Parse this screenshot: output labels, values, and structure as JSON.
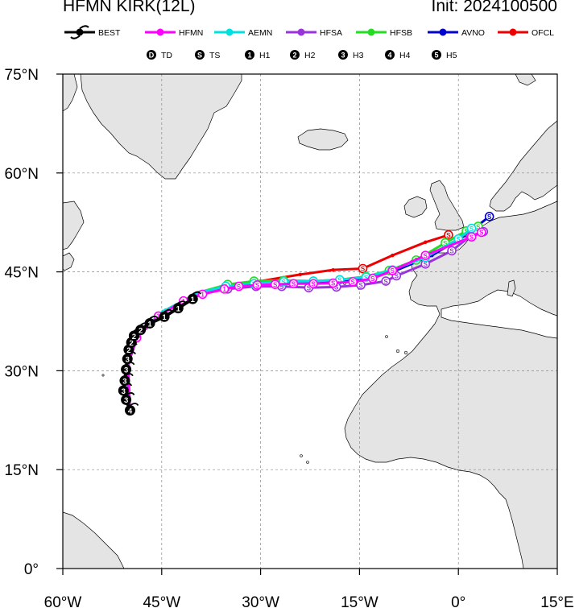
{
  "header": {
    "title": "HFMN KIRK(12L)",
    "init": "Init: 2024100500"
  },
  "legend": {
    "models": [
      {
        "name": "BEST",
        "color": "#000000"
      },
      {
        "name": "HFMN",
        "color": "#ff00ff"
      },
      {
        "name": "AEMN",
        "color": "#00e0e0"
      },
      {
        "name": "HFSA",
        "color": "#9933dd"
      },
      {
        "name": "HFSB",
        "color": "#22dd22"
      },
      {
        "name": "AVNO",
        "color": "#0000cc"
      },
      {
        "name": "OFCL",
        "color": "#ee0000"
      }
    ],
    "intensity": [
      {
        "symbol": "D",
        "label": "TD"
      },
      {
        "symbol": "S",
        "label": "TS"
      },
      {
        "symbol": "1",
        "label": "H1"
      },
      {
        "symbol": "2",
        "label": "H2"
      },
      {
        "symbol": "3",
        "label": "H3"
      },
      {
        "symbol": "4",
        "label": "H4"
      },
      {
        "symbol": "5",
        "label": "H5"
      }
    ]
  },
  "axes": {
    "lon_labels": [
      "60°W",
      "45°W",
      "30°W",
      "15°W",
      "0°",
      "15°E"
    ],
    "lat_labels": [
      "0°",
      "15°N",
      "30°N",
      "45°N",
      "60°N",
      "75°N"
    ],
    "lon_range": [
      -60,
      15
    ],
    "lat_range": [
      0,
      75
    ],
    "grid_lon": [
      -45,
      -30,
      -15,
      0
    ],
    "grid_lat": [
      15,
      30,
      45,
      60
    ]
  },
  "chart_data": {
    "type": "map",
    "tracks": [
      {
        "name": "BEST",
        "points": [
          [
            24,
            -49.8,
            "4"
          ],
          [
            25.6,
            -50.4,
            "3"
          ],
          [
            27,
            -50.8,
            "3"
          ],
          [
            28.5,
            -50.6,
            "3"
          ],
          [
            30.2,
            -50.4,
            "3"
          ],
          [
            31.8,
            -50.2,
            "3"
          ],
          [
            33.2,
            -50.0,
            "2"
          ],
          [
            34.3,
            -49.6,
            "2"
          ],
          [
            35.3,
            -49.2,
            "2"
          ],
          [
            36.2,
            -48.2,
            "2"
          ],
          [
            37.2,
            -46.8,
            "1"
          ],
          [
            38.2,
            -44.6,
            "1"
          ],
          [
            39.5,
            -42.5,
            "1"
          ],
          [
            40.9,
            -40.3,
            "1"
          ]
        ]
      },
      {
        "name": "HFMN",
        "points": [
          [
            24,
            -49.8,
            ""
          ],
          [
            31,
            -50.2,
            ""
          ],
          [
            35,
            -48.8,
            "1"
          ],
          [
            38.3,
            -45.5,
            "1"
          ],
          [
            40.6,
            -41.7,
            "1"
          ],
          [
            41.6,
            -38.8,
            "1"
          ],
          [
            42.4,
            -35.5,
            "1"
          ],
          [
            42.8,
            -33.3,
            "S"
          ],
          [
            43.0,
            -30.5,
            "S"
          ],
          [
            43.1,
            -27.8,
            "S"
          ],
          [
            43.2,
            -25,
            "S"
          ],
          [
            43.2,
            -22,
            "S"
          ],
          [
            43.3,
            -19,
            "S"
          ],
          [
            43.5,
            -16,
            "S"
          ],
          [
            44.0,
            -13,
            "S"
          ],
          [
            45.2,
            -10,
            "S"
          ],
          [
            47.5,
            -5,
            "S"
          ],
          [
            50.3,
            2,
            "S"
          ],
          [
            51.0,
            3.5,
            "S"
          ]
        ]
      },
      {
        "name": "AEMN",
        "points": [
          [
            24,
            -49.9,
            ""
          ],
          [
            31,
            -50.3,
            ""
          ],
          [
            35.5,
            -48.6,
            ""
          ],
          [
            39,
            -44.8,
            ""
          ],
          [
            41.8,
            -39.5,
            ""
          ],
          [
            42.8,
            -35.3,
            "S"
          ],
          [
            43.2,
            -31,
            "S"
          ],
          [
            43.5,
            -26.5,
            "S"
          ],
          [
            43.6,
            -22,
            "S"
          ],
          [
            43.8,
            -18,
            "S"
          ],
          [
            44.2,
            -14,
            "S"
          ],
          [
            45.3,
            -10,
            "S"
          ],
          [
            47.2,
            -5,
            "S"
          ],
          [
            50,
            0,
            "S"
          ],
          [
            51.6,
            2,
            "S"
          ]
        ]
      },
      {
        "name": "HFSA",
        "points": [
          [
            24,
            -49.8,
            ""
          ],
          [
            31,
            -50.1,
            ""
          ],
          [
            35.3,
            -48.6,
            ""
          ],
          [
            39,
            -44.5,
            ""
          ],
          [
            41.6,
            -39.4,
            ""
          ],
          [
            42.4,
            -35,
            "S"
          ],
          [
            42.8,
            -30.7,
            "S"
          ],
          [
            42.8,
            -26.8,
            "S"
          ],
          [
            42.6,
            -22.7,
            "S"
          ],
          [
            42.7,
            -18.5,
            "S"
          ],
          [
            43.0,
            -14.8,
            "S"
          ],
          [
            43.6,
            -11,
            "S"
          ],
          [
            44.4,
            -9.4,
            "S"
          ],
          [
            46.2,
            -5,
            "S"
          ],
          [
            48.2,
            -1,
            "S"
          ],
          [
            50.4,
            1.8,
            "S"
          ],
          [
            51.1,
            3.8,
            "S"
          ]
        ]
      },
      {
        "name": "HFSB",
        "points": [
          [
            24,
            -49.8,
            ""
          ],
          [
            31,
            -50.2,
            ""
          ],
          [
            35.5,
            -48.5,
            ""
          ],
          [
            39.2,
            -44.4,
            ""
          ],
          [
            41.9,
            -39.3,
            ""
          ],
          [
            43.1,
            -35,
            "S"
          ],
          [
            43.6,
            -31,
            "S"
          ],
          [
            43.7,
            -26.5,
            "S"
          ],
          [
            43.6,
            -22,
            "S"
          ],
          [
            43.8,
            -18,
            "S"
          ],
          [
            44.3,
            -14,
            "S"
          ],
          [
            45.2,
            -10.5,
            "S"
          ],
          [
            46.8,
            -6.4,
            "S"
          ],
          [
            49.4,
            -2,
            "S"
          ],
          [
            51.2,
            1.2,
            "S"
          ],
          [
            51.9,
            3,
            "S"
          ]
        ]
      },
      {
        "name": "AVNO",
        "points": [
          [
            24,
            -49.8,
            ""
          ],
          [
            31,
            -50.2,
            ""
          ],
          [
            35.3,
            -48.6,
            ""
          ],
          [
            39,
            -44.5,
            ""
          ],
          [
            41.8,
            -39.6,
            ""
          ],
          [
            42.7,
            -35,
            ""
          ],
          [
            43.1,
            -30.5,
            ""
          ],
          [
            43.3,
            -26,
            ""
          ],
          [
            43.4,
            -21.5,
            ""
          ],
          [
            43.6,
            -17.5,
            ""
          ],
          [
            44,
            -13.5,
            ""
          ],
          [
            45.2,
            -9.5,
            ""
          ],
          [
            47.5,
            -4,
            ""
          ],
          [
            50.5,
            1,
            ""
          ],
          [
            53.4,
            4.7,
            "S"
          ]
        ]
      },
      {
        "name": "OFCL",
        "points": [
          [
            41.3,
            -40.2,
            ""
          ],
          [
            42.3,
            -36,
            ""
          ],
          [
            43.6,
            -30,
            ""
          ],
          [
            44.6,
            -24,
            ""
          ],
          [
            45.3,
            -19,
            ""
          ],
          [
            45.5,
            -14.5,
            "S"
          ],
          [
            47.5,
            -10,
            ""
          ],
          [
            49.5,
            -5,
            ""
          ],
          [
            50.6,
            -1.5,
            "S"
          ]
        ]
      }
    ]
  }
}
